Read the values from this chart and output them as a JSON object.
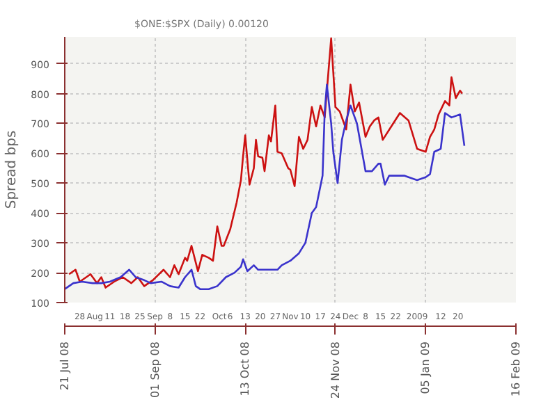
{
  "chart_data": {
    "type": "line",
    "subtitle": "$ONE:$SPX (Daily) 0.00120",
    "ylabel": "Spread bps",
    "series": [
      {
        "color": "#cc1111",
        "x": [
          "2008-07-23",
          "2008-07-26",
          "2008-07-28",
          "2008-08-02",
          "2008-08-05",
          "2008-08-07",
          "2008-08-09",
          "2008-08-13",
          "2008-08-17",
          "2008-08-21",
          "2008-08-24",
          "2008-08-27",
          "2008-08-31",
          "2008-09-05",
          "2008-09-08",
          "2008-09-10",
          "2008-09-12",
          "2008-09-15",
          "2008-09-16",
          "2008-09-18",
          "2008-09-21",
          "2008-09-23",
          "2008-09-26",
          "2008-09-28",
          "2008-09-30",
          "2008-10-02",
          "2008-10-03",
          "2008-10-06",
          "2008-10-09",
          "2008-10-11",
          "2008-10-12",
          "2008-10-13",
          "2008-10-15",
          "2008-10-17",
          "2008-10-18",
          "2008-10-19",
          "2008-10-21",
          "2008-10-22",
          "2008-10-24",
          "2008-10-25",
          "2008-10-27",
          "2008-10-28",
          "2008-10-30",
          "2008-11-02",
          "2008-11-03",
          "2008-11-05",
          "2008-11-07",
          "2008-11-09",
          "2008-11-11",
          "2008-11-13",
          "2008-11-15",
          "2008-11-17",
          "2008-11-19",
          "2008-11-22",
          "2008-11-24",
          "2008-11-26",
          "2008-11-29",
          "2008-12-01",
          "2008-12-03",
          "2008-12-05",
          "2008-12-08",
          "2008-12-10",
          "2008-12-12",
          "2008-12-14",
          "2008-12-16",
          "2008-12-20",
          "2008-12-24",
          "2008-12-28",
          "2009-01-01",
          "2009-01-05",
          "2009-01-07",
          "2009-01-09",
          "2009-01-11",
          "2009-01-14",
          "2009-01-16",
          "2009-01-17",
          "2009-01-19",
          "2009-01-21",
          "2009-01-22"
        ],
        "values": [
          195,
          210,
          170,
          195,
          165,
          185,
          150,
          170,
          185,
          165,
          185,
          155,
          175,
          210,
          185,
          225,
          195,
          250,
          240,
          290,
          205,
          260,
          250,
          240,
          355,
          290,
          290,
          345,
          435,
          510,
          590,
          660,
          495,
          550,
          645,
          590,
          585,
          540,
          660,
          640,
          760,
          605,
          600,
          550,
          545,
          490,
          655,
          615,
          645,
          755,
          690,
          760,
          720,
          985,
          755,
          740,
          680,
          830,
          740,
          770,
          655,
          690,
          710,
          720,
          645,
          690,
          735,
          710,
          615,
          605,
          655,
          680,
          730,
          775,
          760,
          855,
          785,
          810,
          800
        ]
      },
      {
        "color": "#3a33cc",
        "x": [
          "2008-07-21",
          "2008-07-25",
          "2008-07-29",
          "2008-08-03",
          "2008-08-07",
          "2008-08-11",
          "2008-08-16",
          "2008-08-20",
          "2008-08-23",
          "2008-08-27",
          "2008-08-30",
          "2008-09-04",
          "2008-09-08",
          "2008-09-12",
          "2008-09-15",
          "2008-09-18",
          "2008-09-20",
          "2008-09-22",
          "2008-09-26",
          "2008-09-30",
          "2008-10-04",
          "2008-10-08",
          "2008-10-11",
          "2008-10-12",
          "2008-10-14",
          "2008-10-17",
          "2008-10-19",
          "2008-10-24",
          "2008-10-28",
          "2008-10-30",
          "2008-11-03",
          "2008-11-07",
          "2008-11-10",
          "2008-11-13",
          "2008-11-15",
          "2008-11-18",
          "2008-11-19",
          "2008-11-20",
          "2008-11-22",
          "2008-11-23",
          "2008-11-25",
          "2008-11-27",
          "2008-11-29",
          "2008-12-01",
          "2008-12-04",
          "2008-12-06",
          "2008-12-08",
          "2008-12-11",
          "2008-12-14",
          "2008-12-15",
          "2008-12-17",
          "2008-12-19",
          "2008-12-26",
          "2009-01-01",
          "2009-01-05",
          "2009-01-07",
          "2009-01-09",
          "2009-01-12",
          "2009-01-14",
          "2009-01-17",
          "2009-01-21",
          "2009-01-23"
        ],
        "values": [
          145,
          165,
          170,
          165,
          165,
          170,
          185,
          210,
          185,
          175,
          165,
          170,
          155,
          150,
          185,
          210,
          155,
          145,
          145,
          155,
          185,
          200,
          220,
          245,
          205,
          225,
          210,
          210,
          210,
          225,
          240,
          265,
          300,
          400,
          420,
          525,
          740,
          830,
          700,
          605,
          500,
          645,
          710,
          760,
          700,
          620,
          540,
          540,
          565,
          565,
          495,
          525,
          525,
          510,
          520,
          530,
          605,
          615,
          735,
          720,
          730,
          625
        ]
      }
    ],
    "xlim": [
      "2008-07-21",
      "2009-02-16"
    ],
    "xticks": [
      {
        "value": "2008-07-21",
        "label": "21 Jul 08"
      },
      {
        "value": "2008-09-01",
        "label": "01 Sep 08"
      },
      {
        "value": "2008-10-13",
        "label": "13 Oct 08"
      },
      {
        "value": "2008-11-24",
        "label": "24 Nov 08"
      },
      {
        "value": "2009-01-05",
        "label": "05 Jan 09"
      },
      {
        "value": "2009-02-16",
        "label": "16 Feb 09"
      }
    ],
    "x2lim": [
      "2008-07-21",
      "2009-02-16"
    ],
    "x2ticks": [
      {
        "value": "2008-07-28",
        "label": "28"
      },
      {
        "value": "2008-08-04",
        "label": "Aug"
      },
      {
        "value": "2008-08-11",
        "label": "11"
      },
      {
        "value": "2008-08-18",
        "label": "18"
      },
      {
        "value": "2008-08-25",
        "label": "25"
      },
      {
        "value": "2008-09-01",
        "label": "Sep"
      },
      {
        "value": "2008-09-08",
        "label": "8"
      },
      {
        "value": "2008-09-15",
        "label": "15"
      },
      {
        "value": "2008-09-22",
        "label": "22"
      },
      {
        "value": "2008-10-01",
        "label": "Oct"
      },
      {
        "value": "2008-10-06",
        "label": "6"
      },
      {
        "value": "2008-10-13",
        "label": "13"
      },
      {
        "value": "2008-10-20",
        "label": "20"
      },
      {
        "value": "2008-10-27",
        "label": "27"
      },
      {
        "value": "2008-11-03",
        "label": "Nov"
      },
      {
        "value": "2008-11-10",
        "label": "10"
      },
      {
        "value": "2008-11-17",
        "label": "17"
      },
      {
        "value": "2008-11-24",
        "label": "24"
      },
      {
        "value": "2008-12-01",
        "label": "Dec"
      },
      {
        "value": "2008-12-08",
        "label": "8"
      },
      {
        "value": "2008-12-15",
        "label": "15"
      },
      {
        "value": "2008-12-22",
        "label": "22"
      },
      {
        "value": "2009-01-01",
        "label": "2009"
      },
      {
        "value": "2009-01-12",
        "label": "12"
      },
      {
        "value": "2009-01-20",
        "label": "20"
      }
    ],
    "ylim": [
      100,
      990
    ],
    "yticks": [
      100,
      200,
      300,
      400,
      500,
      600,
      700,
      800,
      900
    ],
    "grid": true,
    "marker": "none",
    "line_style": "solid"
  }
}
